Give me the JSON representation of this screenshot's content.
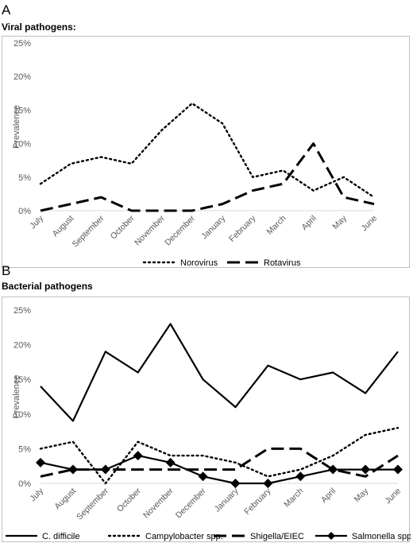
{
  "panel_a": {
    "letter": "A",
    "title": "Viral pathogens:"
  },
  "panel_b": {
    "letter": "B",
    "title": "Bacterial pathogens"
  },
  "chart_data": [
    {
      "type": "line",
      "ylabel": "Prevalence",
      "ylim": [
        0,
        25
      ],
      "yticks": [
        "0%",
        "5%",
        "10%",
        "15%",
        "20%",
        "25%"
      ],
      "categories": [
        "July",
        "August",
        "September",
        "October",
        "November",
        "December",
        "January",
        "February",
        "March",
        "April",
        "May",
        "June"
      ],
      "legend_position": "bottom",
      "grid": false,
      "series": [
        {
          "name": "Norovirus",
          "style": "dotted",
          "values": [
            4,
            7,
            8,
            7,
            12,
            16,
            13,
            5,
            6,
            3,
            5,
            2
          ]
        },
        {
          "name": "Rotavirus",
          "style": "long-dash",
          "values": [
            0,
            1,
            2,
            0,
            0,
            0,
            1,
            3,
            4,
            10,
            2,
            1
          ]
        }
      ]
    },
    {
      "type": "line",
      "ylabel": "Prevalence",
      "ylim": [
        0,
        25
      ],
      "yticks": [
        "0%",
        "5%",
        "10%",
        "15%",
        "20%",
        "25%"
      ],
      "categories": [
        "July",
        "August",
        "September",
        "October",
        "November",
        "December",
        "January",
        "February",
        "March",
        "April",
        "May",
        "June"
      ],
      "legend_position": "bottom",
      "grid": false,
      "series": [
        {
          "name": "C. difficile",
          "style": "solid",
          "values": [
            14,
            9,
            19,
            16,
            23,
            15,
            11,
            17,
            15,
            16,
            13,
            19
          ]
        },
        {
          "name": "Campylobacter spp.",
          "style": "dotted",
          "values": [
            5,
            6,
            0,
            6,
            4,
            4,
            3,
            1,
            2,
            4,
            7,
            8
          ]
        },
        {
          "name": "Shigella/EIEC",
          "style": "long-dash",
          "values": [
            1,
            2,
            2,
            2,
            2,
            2,
            2,
            5,
            5,
            2,
            1,
            4
          ]
        },
        {
          "name": "Salmonella spp.",
          "style": "solid-diamond",
          "values": [
            3,
            2,
            2,
            4,
            3,
            1,
            0,
            0,
            1,
            2,
            2,
            2
          ]
        }
      ]
    }
  ]
}
